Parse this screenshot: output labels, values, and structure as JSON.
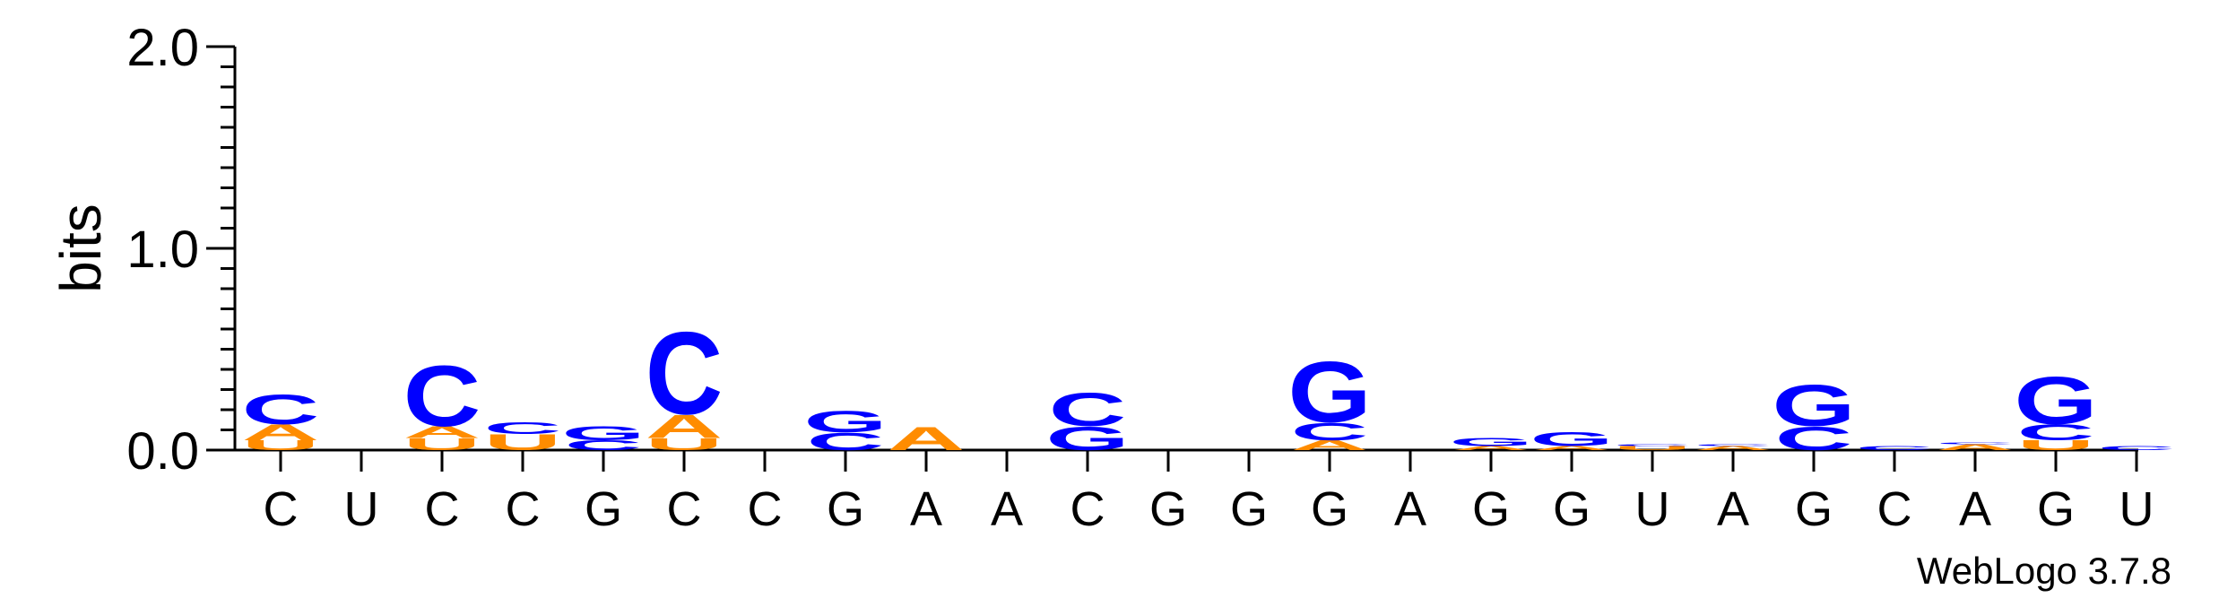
{
  "chart_data": {
    "type": "sequence-logo",
    "ylabel": "bits",
    "ylim": [
      0,
      2.0
    ],
    "yticks": [
      "0.0",
      "1.0",
      "2.0"
    ],
    "xticks": [
      "C",
      "U",
      "C",
      "C",
      "G",
      "C",
      "C",
      "G",
      "A",
      "A",
      "C",
      "G",
      "G",
      "G",
      "A",
      "G",
      "G",
      "U",
      "A",
      "G",
      "C",
      "A",
      "G",
      "U"
    ],
    "credit": "WebLogo 3.7.8",
    "colors": {
      "A": "#ff8c00",
      "U": "#ff8c00",
      "C": "#0000ff",
      "G": "#0000ff"
    },
    "columns": [
      {
        "stack": [
          [
            "U",
            0.05
          ],
          [
            "A",
            0.08
          ],
          [
            "C",
            0.15
          ]
        ]
      },
      {
        "stack": []
      },
      {
        "stack": [
          [
            "U",
            0.06
          ],
          [
            "A",
            0.06
          ],
          [
            "C",
            0.31
          ]
        ]
      },
      {
        "stack": [
          [
            "U",
            0.08
          ],
          [
            "C",
            0.06
          ]
        ]
      },
      {
        "stack": [
          [
            "C",
            0.05
          ],
          [
            "G",
            0.07
          ]
        ]
      },
      {
        "stack": [
          [
            "U",
            0.06
          ],
          [
            "A",
            0.12
          ],
          [
            "C",
            0.42
          ]
        ]
      },
      {
        "stack": []
      },
      {
        "stack": [
          [
            "C",
            0.09
          ],
          [
            "G",
            0.11
          ]
        ]
      },
      {
        "stack": [
          [
            "A",
            0.12
          ]
        ]
      },
      {
        "stack": []
      },
      {
        "stack": [
          [
            "G",
            0.12
          ],
          [
            "C",
            0.17
          ]
        ]
      },
      {
        "stack": []
      },
      {
        "stack": []
      },
      {
        "stack": [
          [
            "A",
            0.05
          ],
          [
            "C",
            0.09
          ],
          [
            "G",
            0.31
          ]
        ]
      },
      {
        "stack": []
      },
      {
        "stack": [
          [
            "A",
            0.02
          ],
          [
            "G",
            0.04
          ]
        ]
      },
      {
        "stack": [
          [
            "A",
            0.02
          ],
          [
            "G",
            0.07
          ]
        ]
      },
      {
        "stack": [
          [
            "U",
            0.02
          ],
          [
            "C",
            0.01
          ]
        ]
      },
      {
        "stack": [
          [
            "A",
            0.02
          ],
          [
            "C",
            0.01
          ]
        ]
      },
      {
        "stack": [
          [
            "C",
            0.12
          ],
          [
            "G",
            0.21
          ]
        ]
      },
      {
        "stack": [
          [
            "C",
            0.02
          ]
        ]
      },
      {
        "stack": [
          [
            "A",
            0.03
          ],
          [
            "C",
            0.01
          ]
        ]
      },
      {
        "stack": [
          [
            "U",
            0.05
          ],
          [
            "C",
            0.08
          ],
          [
            "G",
            0.24
          ]
        ]
      },
      {
        "stack": [
          [
            "C",
            0.02
          ]
        ]
      }
    ]
  }
}
